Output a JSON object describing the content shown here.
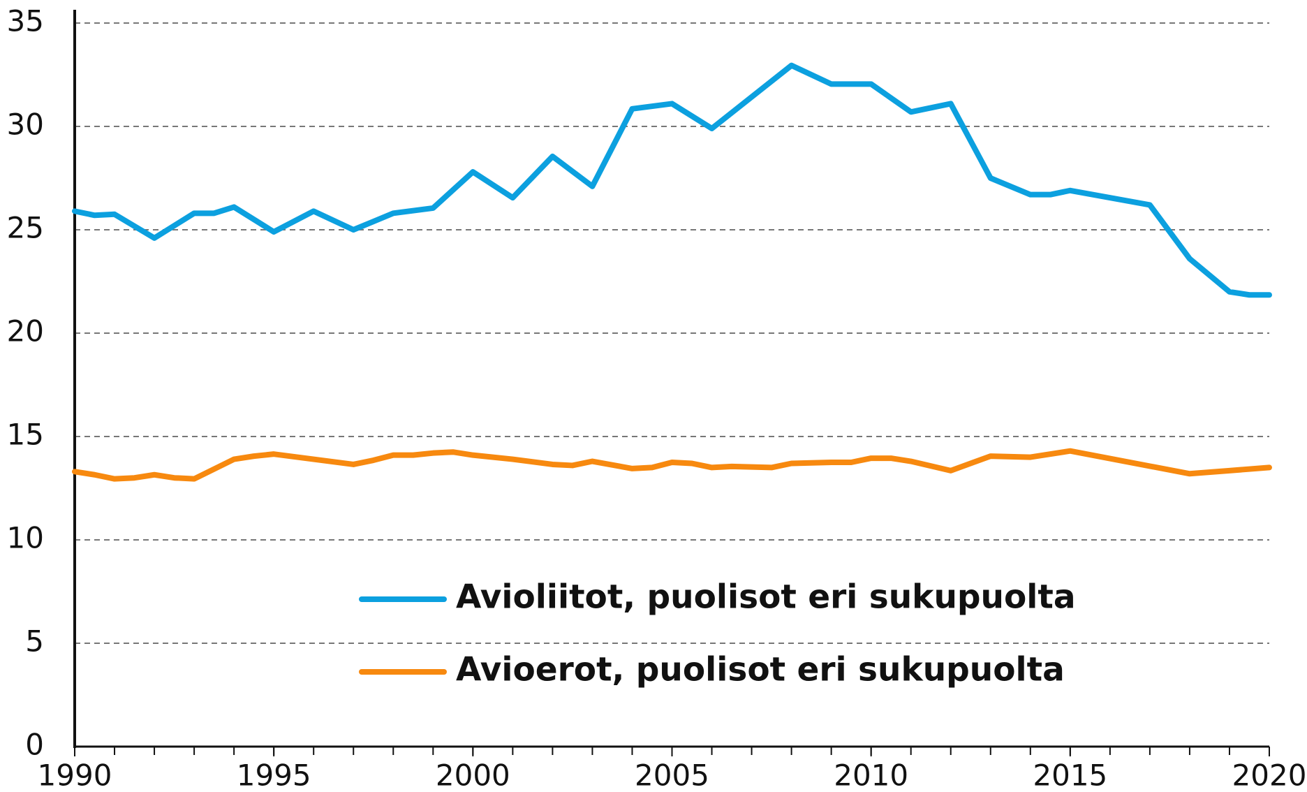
{
  "chart_data": {
    "type": "line",
    "xlim": [
      1990,
      2020
    ],
    "xticks": [
      1990,
      1995,
      2000,
      2005,
      2010,
      2015,
      2020
    ],
    "xminorticks": [
      1990,
      1991,
      1992,
      1993,
      1994,
      1995,
      1996,
      1997,
      1998,
      1999,
      2000,
      2001,
      2002,
      2003,
      2004,
      2005,
      2006,
      2007,
      2008,
      2009,
      2010,
      2011,
      2012,
      2013,
      2014,
      2015,
      2016,
      2017,
      2018,
      2019,
      2020
    ],
    "ylim": [
      0,
      35
    ],
    "yticks": [
      0,
      5,
      10,
      15,
      20,
      25,
      30,
      35
    ],
    "grid": true,
    "series": [
      {
        "name": "Avioliitot, puolisot eri sukupuolta",
        "color": "#0ca0df",
        "x": [
          1990,
          1990.5,
          1991,
          1992,
          1993,
          1993.5,
          1994,
          1995,
          1996,
          1997,
          1997.5,
          1998,
          1999,
          2000,
          2001,
          2002,
          2003,
          2004,
          2005,
          2006,
          2008,
          2009,
          2010,
          2011,
          2012,
          2013,
          2014,
          2014.5,
          2015,
          2017,
          2018,
          2019,
          2019.5,
          2020
        ],
        "values": [
          25.9,
          25.7,
          25.75,
          24.6,
          25.8,
          25.8,
          26.1,
          24.9,
          25.9,
          25.0,
          25.4,
          25.8,
          26.05,
          27.8,
          26.55,
          28.55,
          27.1,
          30.85,
          31.1,
          29.9,
          32.95,
          32.05,
          32.05,
          30.7,
          31.1,
          27.5,
          26.7,
          26.7,
          26.9,
          26.2,
          23.6,
          22.0,
          21.85,
          21.85
        ]
      },
      {
        "name": "Avioerot, puolisot eri sukupuolta",
        "color": "#f7890f",
        "x": [
          1990,
          1990.5,
          1991,
          1991.5,
          1992,
          1992.5,
          1993,
          1994,
          1994.5,
          1995,
          1997,
          1997.5,
          1998,
          1998.5,
          1999,
          1999.5,
          2000,
          2001,
          2002,
          2002.5,
          2003,
          2004,
          2004.5,
          2005,
          2005.5,
          2006,
          2006.5,
          2007.5,
          2008,
          2009,
          2009.5,
          2010,
          2010.5,
          2011,
          2012,
          2013,
          2014,
          2015,
          2018,
          2019,
          2020
        ],
        "values": [
          13.3,
          13.15,
          12.95,
          13.0,
          13.15,
          13.0,
          12.95,
          13.9,
          14.05,
          14.15,
          13.65,
          13.85,
          14.1,
          14.1,
          14.2,
          14.25,
          14.1,
          13.9,
          13.65,
          13.6,
          13.8,
          13.45,
          13.5,
          13.75,
          13.7,
          13.5,
          13.55,
          13.5,
          13.7,
          13.75,
          13.75,
          13.95,
          13.95,
          13.8,
          13.35,
          14.05,
          14.0,
          14.3,
          13.2,
          13.35,
          13.5
        ]
      }
    ]
  }
}
